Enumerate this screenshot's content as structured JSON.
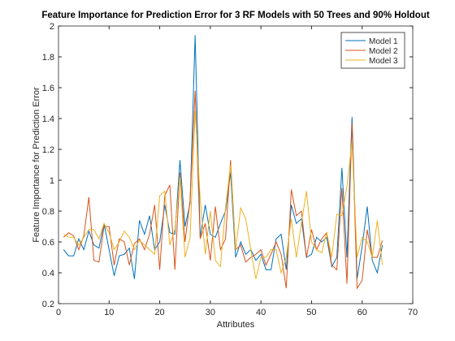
{
  "chart_data": {
    "type": "line",
    "title": "Feature Importance for Prediction Error for 3 RF Models with 50 Trees and 90% Holdout",
    "xlabel": "Attributes",
    "ylabel": "Feature Importance for Prediction Error",
    "x": [
      1,
      2,
      3,
      4,
      5,
      6,
      7,
      8,
      9,
      10,
      11,
      12,
      13,
      14,
      15,
      16,
      17,
      18,
      19,
      20,
      21,
      22,
      23,
      24,
      25,
      26,
      27,
      28,
      29,
      30,
      31,
      32,
      33,
      34,
      35,
      36,
      37,
      38,
      39,
      40,
      41,
      42,
      43,
      44,
      45,
      46,
      47,
      48,
      49,
      50,
      51,
      52,
      53,
      54,
      55,
      56,
      57,
      58,
      59,
      60,
      61,
      62,
      63,
      64
    ],
    "series": [
      {
        "name": "Model 1",
        "color": "#0072bd",
        "values": [
          0.55,
          0.51,
          0.51,
          0.62,
          0.55,
          0.67,
          0.58,
          0.56,
          0.72,
          0.55,
          0.38,
          0.51,
          0.52,
          0.56,
          0.36,
          0.74,
          0.65,
          0.77,
          0.55,
          0.6,
          0.84,
          0.66,
          0.65,
          1.13,
          0.7,
          0.85,
          1.94,
          0.63,
          0.84,
          0.65,
          0.63,
          0.72,
          0.8,
          1.05,
          0.5,
          0.6,
          0.52,
          0.55,
          0.48,
          0.52,
          0.42,
          0.42,
          0.62,
          0.65,
          0.42,
          0.84,
          0.72,
          0.75,
          0.5,
          0.52,
          0.63,
          0.6,
          0.63,
          0.44,
          0.5,
          1.08,
          0.5,
          1.41,
          0.36,
          0.57,
          0.83,
          0.48,
          0.4,
          0.58
        ]
      },
      {
        "name": "Model 2",
        "color": "#d95319",
        "values": [
          0.63,
          0.66,
          0.64,
          0.55,
          0.64,
          0.89,
          0.48,
          0.47,
          0.7,
          0.7,
          0.45,
          0.62,
          0.6,
          0.45,
          0.59,
          0.62,
          0.55,
          0.65,
          0.84,
          0.42,
          0.9,
          0.97,
          0.42,
          1.05,
          0.6,
          0.87,
          1.58,
          0.62,
          0.72,
          0.48,
          0.83,
          0.55,
          0.62,
          1.13,
          0.55,
          0.58,
          0.47,
          0.5,
          0.52,
          0.55,
          0.45,
          0.52,
          0.6,
          0.52,
          0.3,
          0.94,
          0.77,
          0.8,
          0.5,
          0.68,
          0.55,
          0.62,
          0.66,
          0.45,
          0.42,
          0.95,
          0.33,
          1.37,
          0.3,
          0.35,
          0.68,
          0.5,
          0.5,
          0.61
        ]
      },
      {
        "name": "Model 3",
        "color": "#edb120",
        "values": [
          0.65,
          0.63,
          0.63,
          0.58,
          0.63,
          0.68,
          0.68,
          0.62,
          0.72,
          0.66,
          0.55,
          0.6,
          0.67,
          0.63,
          0.55,
          0.61,
          0.58,
          0.55,
          0.52,
          0.9,
          0.93,
          0.58,
          0.68,
          1.02,
          0.5,
          0.63,
          1.45,
          0.88,
          0.52,
          0.8,
          0.48,
          0.44,
          0.82,
          1.1,
          0.55,
          0.82,
          0.75,
          0.55,
          0.36,
          0.5,
          0.5,
          0.55,
          0.55,
          0.4,
          0.5,
          0.75,
          0.5,
          0.72,
          0.93,
          0.6,
          0.55,
          0.53,
          0.66,
          0.5,
          0.78,
          0.77,
          0.96,
          1.25,
          0.5,
          0.63,
          0.6,
          0.5,
          0.74,
          0.45
        ]
      }
    ],
    "xlim": [
      0,
      70
    ],
    "xticks": [
      0,
      10,
      20,
      30,
      40,
      50,
      60,
      70
    ],
    "ylim": [
      0.2,
      2
    ],
    "yticks": [
      0.2,
      0.4,
      0.6,
      0.8,
      1,
      1.2,
      1.4,
      1.6,
      1.8,
      2
    ],
    "legend": "northeast"
  }
}
